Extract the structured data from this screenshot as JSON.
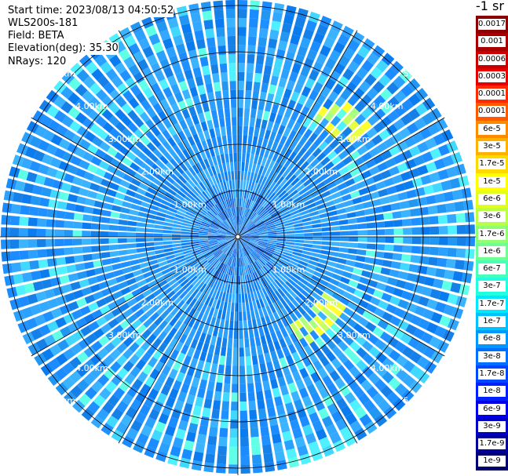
{
  "info": {
    "start_time": "Start time: 2023/08/13 04:50:52",
    "instrument": "WLS200s-181",
    "field": "Field: BETA",
    "elevation": "Elevation(deg): 35.30",
    "nrays": "NRays: 120"
  },
  "range_labels": [
    "1.00km",
    "2.00km",
    "3.00km",
    "4.00km",
    "5.00km"
  ],
  "colorbar": {
    "unit": "-1 sr",
    "ticks": [
      "0.0017",
      "0.001",
      "0.0006",
      "0.0003",
      "0.00017",
      "0.0001",
      "6e-5",
      "3e-5",
      "1.7e-5",
      "1e-5",
      "6e-6",
      "3e-6",
      "1.7e-6",
      "1e-6",
      "6e-7",
      "3e-7",
      "1.7e-7",
      "1e-7",
      "6e-8",
      "3e-8",
      "1.7e-8",
      "1e-8",
      "6e-9",
      "3e-9",
      "1.7e-9",
      "1e-9"
    ],
    "colors": [
      "#8b0000",
      "#a80000",
      "#c80000",
      "#e80000",
      "#ff2a00",
      "#ff5a00",
      "#ff8a00",
      "#ffb000",
      "#ffd800",
      "#ffff00",
      "#e0ff20",
      "#b8ff48",
      "#90ff70",
      "#70ff90",
      "#48ffb8",
      "#20ffe0",
      "#00e8ff",
      "#00c0ff",
      "#0098ff",
      "#0070ff",
      "#0048ff",
      "#0020ff",
      "#0000e8",
      "#0000c0",
      "#000098",
      "#000070"
    ]
  }
}
